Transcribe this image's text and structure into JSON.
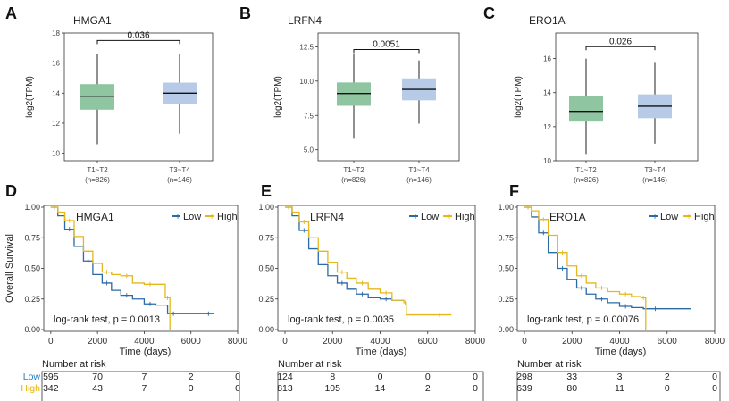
{
  "colors": {
    "low_box": "#8fc5a0",
    "high_box": "#b7cbe8",
    "low_km": "#2b6aa6",
    "high_km": "#e4b81c",
    "risk_low_text": "#2b7fc0",
    "risk_high_text": "#e8b200"
  },
  "chart_data": [
    {
      "type": "box",
      "panel_letter": "A",
      "gene": "HMGA1",
      "ylabel": "log2(TPM)",
      "ylim": [
        9.5,
        18
      ],
      "yticks": [
        10,
        12,
        14,
        16,
        18
      ],
      "categories": [
        "T1~T2",
        "T3~T4"
      ],
      "counts": [
        "(n=826)",
        "(n=146)"
      ],
      "boxes": [
        {
          "whisker_low": 10.6,
          "q1": 12.9,
          "median": 13.8,
          "q3": 14.6,
          "whisker_high": 16.6
        },
        {
          "whisker_low": 11.3,
          "q1": 13.3,
          "median": 14.0,
          "q3": 14.7,
          "whisker_high": 16.6
        }
      ],
      "pvalue": "0.036",
      "bracket_y": 17.5
    },
    {
      "type": "box",
      "panel_letter": "B",
      "gene": "LRFN4",
      "ylabel": "log2(TPM)",
      "ylim": [
        4.2,
        13.5
      ],
      "yticks": [
        5.0,
        7.5,
        10.0,
        12.5
      ],
      "ytick_labels": [
        "5.0",
        "7.5",
        "10.0",
        "12.5"
      ],
      "categories": [
        "T1~T2",
        "T3~T4"
      ],
      "counts": [
        "(n=826)",
        "(n=146)"
      ],
      "boxes": [
        {
          "whisker_low": 5.8,
          "q1": 8.2,
          "median": 9.1,
          "q3": 9.9,
          "whisker_high": 12.0
        },
        {
          "whisker_low": 6.9,
          "q1": 8.6,
          "median": 9.4,
          "q3": 10.2,
          "whisker_high": 11.5
        }
      ],
      "pvalue": "0.0051",
      "bracket_y": 12.3
    },
    {
      "type": "box",
      "panel_letter": "C",
      "gene": "ERO1A",
      "ylabel": "log2(TPM)",
      "ylim": [
        10,
        17.5
      ],
      "yticks": [
        10,
        12,
        14,
        16
      ],
      "categories": [
        "T1~T2",
        "T3~T4"
      ],
      "counts": [
        "(n=826)",
        "(n=146)"
      ],
      "boxes": [
        {
          "whisker_low": 10.4,
          "q1": 12.3,
          "median": 12.9,
          "q3": 13.8,
          "whisker_high": 16.0
        },
        {
          "whisker_low": 11.0,
          "q1": 12.5,
          "median": 13.2,
          "q3": 13.9,
          "whisker_high": 15.8
        }
      ],
      "pvalue": "0.026",
      "bracket_y": 16.7
    },
    {
      "type": "line",
      "panel_letter": "D",
      "gene": "HMGA1",
      "ylabel": "Overall Survival",
      "xlabel": "Time (days)",
      "xlim": [
        -300,
        8000
      ],
      "xticks": [
        0,
        2000,
        4000,
        6000,
        8000
      ],
      "ylim": [
        0,
        1.0
      ],
      "yticks": [
        0.0,
        0.25,
        0.5,
        0.75,
        1.0
      ],
      "ytick_labels": [
        "0.00",
        "0.25",
        "0.50",
        "0.75",
        "1.00"
      ],
      "legend": [
        "Low",
        "High"
      ],
      "stat": "log-rank test, p = 0.0013",
      "series": [
        {
          "name": "Low",
          "x": [
            0,
            300,
            600,
            1000,
            1400,
            1800,
            2200,
            2600,
            3000,
            3500,
            4000,
            4500,
            5000,
            5500,
            6500,
            7000
          ],
          "y": [
            1.0,
            0.93,
            0.82,
            0.68,
            0.56,
            0.45,
            0.38,
            0.32,
            0.28,
            0.25,
            0.21,
            0.2,
            0.13,
            0.13,
            0.13,
            0.13
          ]
        },
        {
          "name": "High",
          "x": [
            0,
            300,
            600,
            1000,
            1400,
            1800,
            2200,
            2600,
            3000,
            3500,
            4000,
            4500,
            4900,
            5100
          ],
          "y": [
            1.0,
            0.96,
            0.89,
            0.76,
            0.64,
            0.54,
            0.47,
            0.45,
            0.44,
            0.38,
            0.37,
            0.37,
            0.26,
            0.0
          ]
        }
      ],
      "risk_title": "Number at risk",
      "risk_rows": [
        {
          "label": "Low",
          "values": [
            "595",
            "70",
            "7",
            "2",
            "0"
          ]
        },
        {
          "label": "High",
          "values": [
            "342",
            "43",
            "7",
            "0",
            "0"
          ]
        }
      ]
    },
    {
      "type": "line",
      "panel_letter": "E",
      "gene": "LRFN4",
      "ylabel": "",
      "xlabel": "Time (days)",
      "xlim": [
        -300,
        8000
      ],
      "xticks": [
        0,
        2000,
        4000,
        6000,
        8000
      ],
      "ylim": [
        0,
        1.0
      ],
      "yticks": [
        0.0,
        0.25,
        0.5,
        0.75,
        1.0
      ],
      "ytick_labels": [
        "0.00",
        "0.25",
        "0.50",
        "0.75",
        "1.00"
      ],
      "legend": [
        "Low",
        "High"
      ],
      "stat": "log-rank test, p = 0.0035",
      "series": [
        {
          "name": "Low",
          "x": [
            0,
            300,
            600,
            1000,
            1400,
            1800,
            2200,
            2600,
            3000,
            3500,
            4000,
            4500,
            5000
          ],
          "y": [
            1.0,
            0.93,
            0.81,
            0.66,
            0.53,
            0.44,
            0.38,
            0.33,
            0.29,
            0.26,
            0.25,
            0.24,
            0.24
          ]
        },
        {
          "name": "High",
          "x": [
            0,
            300,
            600,
            1000,
            1400,
            1800,
            2200,
            2600,
            3000,
            3500,
            4000,
            4500,
            5000,
            5100,
            6000,
            7000
          ],
          "y": [
            1.0,
            0.96,
            0.88,
            0.75,
            0.64,
            0.55,
            0.47,
            0.42,
            0.38,
            0.33,
            0.3,
            0.24,
            0.22,
            0.12,
            0.12,
            0.12
          ]
        }
      ],
      "risk_title": "Number at risk",
      "risk_rows": [
        {
          "label": "Low",
          "values": [
            "124",
            "8",
            "0",
            "0",
            "0"
          ]
        },
        {
          "label": "High",
          "values": [
            "813",
            "105",
            "14",
            "2",
            "0"
          ]
        }
      ]
    },
    {
      "type": "line",
      "panel_letter": "F",
      "gene": "ERO1A",
      "ylabel": "",
      "xlabel": "Time (days)",
      "xlim": [
        -300,
        8000
      ],
      "xticks": [
        0,
        2000,
        4000,
        6000,
        8000
      ],
      "ylim": [
        0,
        1.0
      ],
      "yticks": [
        0.0,
        0.25,
        0.5,
        0.75,
        1.0
      ],
      "ytick_labels": [
        "0.00",
        "0.25",
        "0.50",
        "0.75",
        "1.00"
      ],
      "legend": [
        "Low",
        "High"
      ],
      "stat": "log-rank test, p = 0.00076",
      "series": [
        {
          "name": "Low",
          "x": [
            0,
            300,
            600,
            1000,
            1400,
            1800,
            2200,
            2600,
            3000,
            3500,
            4000,
            4500,
            5000,
            6000,
            7000
          ],
          "y": [
            1.0,
            0.92,
            0.79,
            0.63,
            0.5,
            0.41,
            0.34,
            0.29,
            0.25,
            0.22,
            0.19,
            0.18,
            0.17,
            0.17,
            0.17
          ]
        },
        {
          "name": "High",
          "x": [
            0,
            300,
            600,
            1000,
            1400,
            1800,
            2200,
            2600,
            3000,
            3500,
            4000,
            4500,
            4900,
            5100
          ],
          "y": [
            1.0,
            0.97,
            0.9,
            0.77,
            0.63,
            0.52,
            0.44,
            0.38,
            0.34,
            0.31,
            0.29,
            0.27,
            0.26,
            0.0
          ]
        }
      ],
      "risk_title": "Number at risk",
      "risk_rows": [
        {
          "label": "Low",
          "values": [
            "298",
            "33",
            "3",
            "2",
            "0"
          ]
        },
        {
          "label": "High",
          "values": [
            "639",
            "80",
            "11",
            "0",
            "0"
          ]
        }
      ]
    }
  ]
}
